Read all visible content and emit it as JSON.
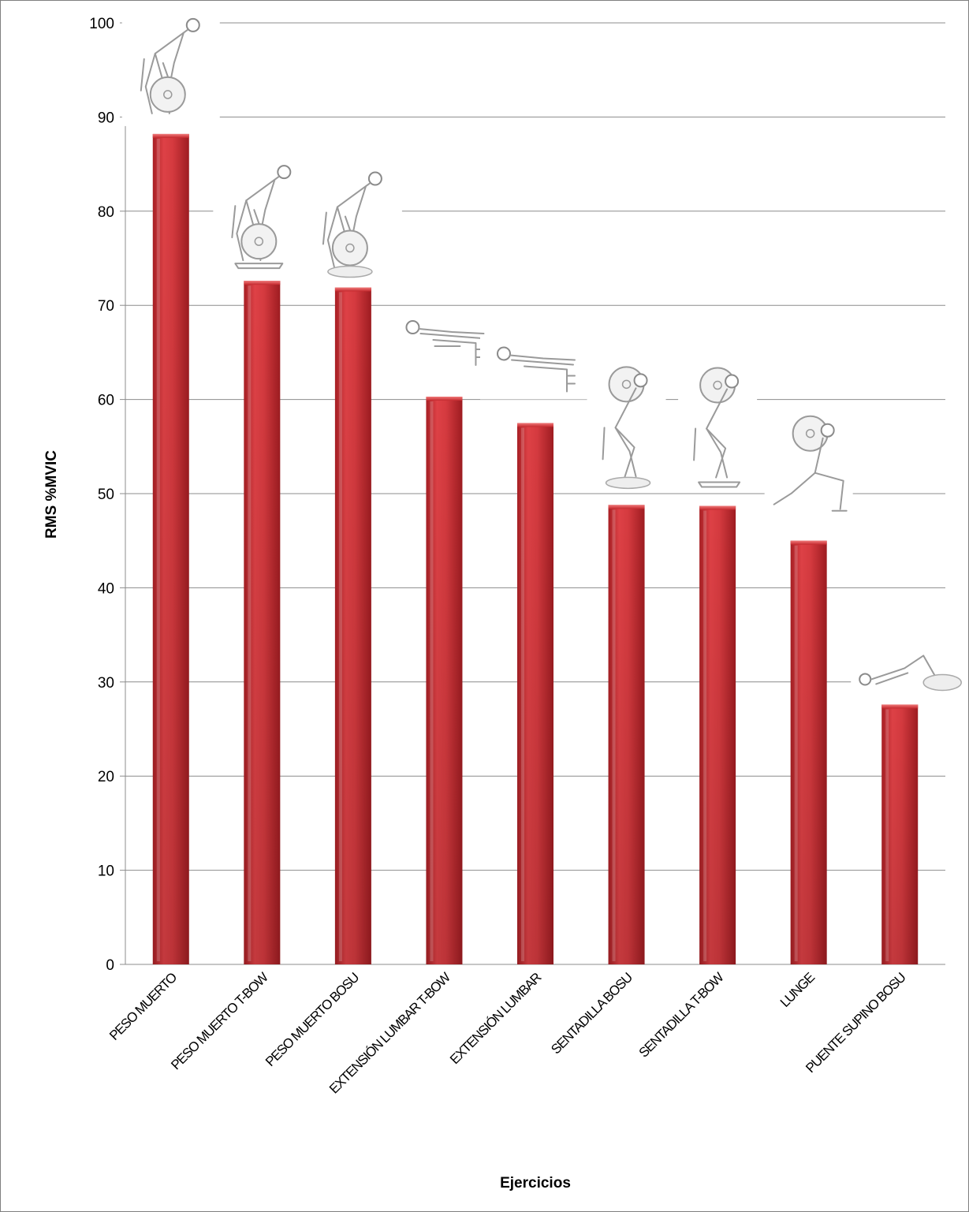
{
  "chart_data": {
    "type": "bar",
    "title": "",
    "xlabel": "Ejercicios",
    "ylabel": "RMS %MVIC",
    "ylim": [
      0,
      100
    ],
    "yticks": [
      0,
      10,
      20,
      30,
      40,
      50,
      60,
      70,
      80,
      90,
      100
    ],
    "yticks_text": [
      "0",
      "10",
      "20",
      "30",
      "40",
      "50",
      "60",
      "70",
      "80",
      "90",
      "100"
    ],
    "grid": true,
    "legend": "none",
    "categories": [
      "PESO MUERTO",
      "PESO MUERTO T-BOW",
      "PESO MUERTO BOSU",
      "EXTENSIÓN LUMBAR T-BOW",
      "EXTENSIÓN LUMBAR",
      "SENTADILLA BOSU",
      "SENTADILLA T-BOW",
      "LUNGE",
      "PUENTE SUPINO BOSU"
    ],
    "values": [
      88.2,
      72.6,
      71.9,
      60.3,
      57.5,
      48.8,
      48.7,
      45.0,
      27.6
    ],
    "bar_color": "#c0282c",
    "bar_highlight": "#e65050",
    "illustrations": [
      "deadlift-figure-icon",
      "deadlift-tbow-figure-icon",
      "deadlift-bosu-figure-icon",
      "back-extension-tbow-figure-icon",
      "back-extension-figure-icon",
      "squat-bosu-figure-icon",
      "squat-tbow-figure-icon",
      "lunge-figure-icon",
      "supine-bridge-bosu-figure-icon"
    ]
  }
}
